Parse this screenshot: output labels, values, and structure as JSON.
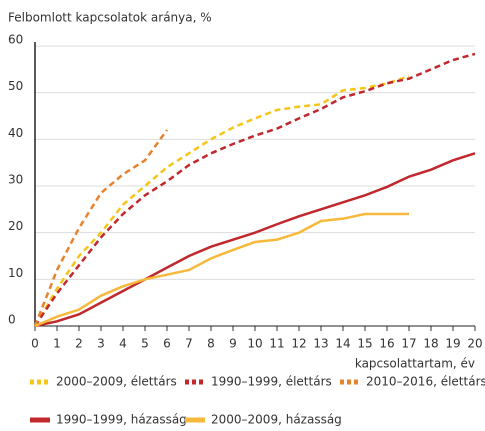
{
  "chart_data": {
    "type": "line",
    "y_label": "Felbomlott kapcsolatok aránya, %",
    "x_label": "kapcsolattartam, év",
    "x": [
      0,
      1,
      2,
      3,
      4,
      5,
      6,
      7,
      8,
      9,
      10,
      11,
      12,
      13,
      14,
      15,
      16,
      17,
      18,
      19,
      20
    ],
    "xlim": [
      0,
      20
    ],
    "xticks": [
      0,
      1,
      2,
      3,
      4,
      5,
      6,
      7,
      8,
      9,
      10,
      11,
      12,
      13,
      14,
      15,
      16,
      17,
      18,
      19,
      20
    ],
    "ylim": [
      0,
      60
    ],
    "yticks": [
      0,
      10,
      20,
      30,
      40,
      50,
      60
    ],
    "grid": true,
    "series": [
      {
        "name": "2000–2009, élettárs",
        "color": "#f5c518",
        "style": "dashed",
        "values": [
          0,
          8,
          15,
          20,
          26,
          30,
          34,
          37,
          40,
          42.5,
          44.5,
          46.3,
          47,
          47.5,
          50.5,
          51,
          52,
          53.5,
          null,
          null,
          null
        ]
      },
      {
        "name": "1990–1999, élettárs",
        "color": "#c0282d",
        "style": "dashed",
        "values": [
          0,
          7,
          13,
          19,
          24,
          28,
          31,
          34.5,
          37,
          39,
          40.8,
          42.3,
          44.5,
          46.5,
          49,
          50.3,
          52,
          53,
          55,
          57,
          58.3
        ]
      },
      {
        "name": "2010–2016, élettárs",
        "color": "#e8822c",
        "style": "dashed",
        "values": [
          0,
          12,
          21,
          28.5,
          32.5,
          35.5,
          42,
          null,
          null,
          null,
          null,
          null,
          null,
          null,
          null,
          null,
          null,
          null,
          null,
          null,
          null
        ]
      },
      {
        "name": "1990–1999, házasság",
        "color": "#c0282d",
        "style": "solid",
        "values": [
          0,
          1,
          2.5,
          5,
          7.5,
          10,
          12.5,
          15,
          17,
          18.5,
          20,
          21.8,
          23.5,
          25,
          26.5,
          28,
          29.8,
          32,
          33.5,
          35.5,
          37
        ]
      },
      {
        "name": "2000–2009, házasság",
        "color": "#f6b93b",
        "style": "solid",
        "values": [
          0,
          2,
          3.5,
          6.5,
          8.5,
          10,
          11,
          12,
          14.5,
          16.3,
          18,
          18.5,
          20,
          22.5,
          23,
          24,
          24,
          24,
          null,
          null,
          null
        ]
      }
    ]
  }
}
